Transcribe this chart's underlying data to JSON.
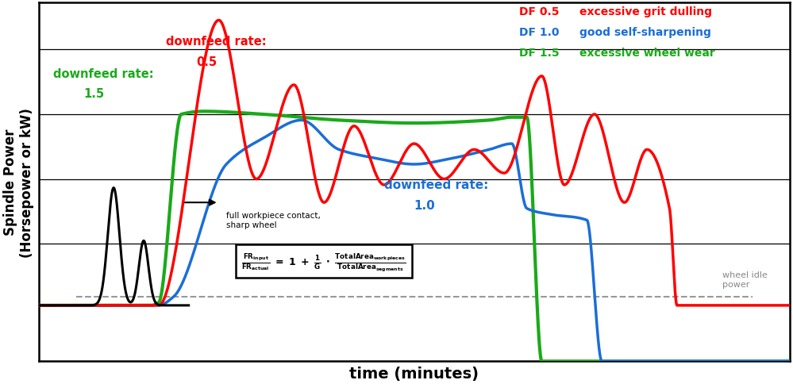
{
  "title": "",
  "xlabel": "time (minutes)",
  "ylabel": "Spindle Power\n(Horsepower or kW)",
  "background_color": "#ffffff",
  "xlim": [
    0,
    100
  ],
  "ylim": [
    -12,
    110
  ],
  "idle_power_y": 10,
  "legend_df": [
    "DF 0.5",
    "DF 1.0",
    "DF 1.5"
  ],
  "legend_labels": [
    "excessive grit dulling",
    "good self-sharpening",
    "excessive wheel wear"
  ],
  "legend_colors": [
    "#ff0000",
    "#1a6ed8",
    "#1aaa1a"
  ],
  "annotation_contact": "full workpiece contact,\nsharp wheel",
  "annotation_df05_line1": "downfeed rate:",
  "annotation_df05_line2": "0.5",
  "annotation_df10_line1": "downfeed rate:",
  "annotation_df10_line2": "1.0",
  "annotation_df15_line1": "downfeed rate:",
  "annotation_df15_line2": "1.5",
  "wheel_idle_text": "wheel idle\npower"
}
